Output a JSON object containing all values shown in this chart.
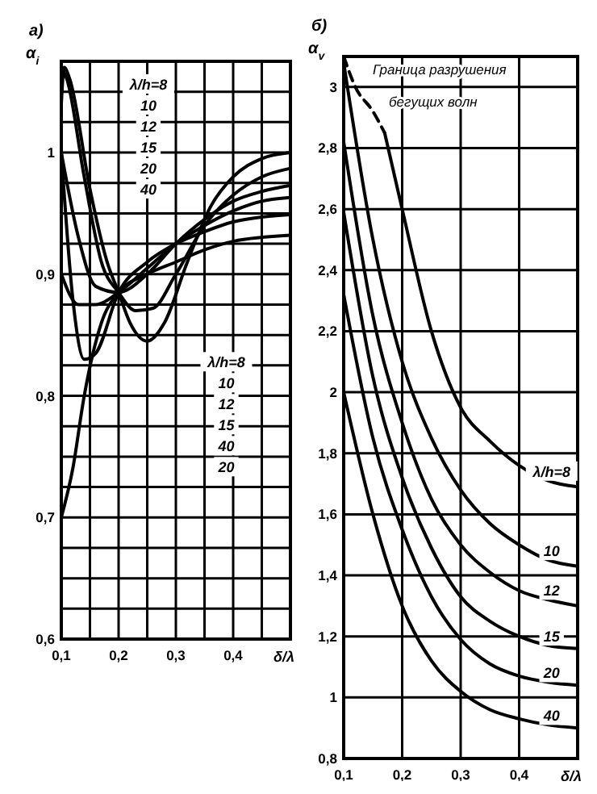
{
  "chart_data": [
    {
      "type": "line",
      "title": "а)",
      "ylabel": "α$_{i}$",
      "xlabel": "δ/λ",
      "xlim": [
        0.1,
        0.5
      ],
      "ylim": [
        0.6,
        1.075
      ],
      "xticks": [
        {
          "value": 0.1,
          "label": "0,1"
        },
        {
          "value": 0.15,
          "label": null
        },
        {
          "value": 0.2,
          "label": "0,2"
        },
        {
          "value": 0.25,
          "label": null
        },
        {
          "value": 0.3,
          "label": "0,3"
        },
        {
          "value": 0.35,
          "label": null
        },
        {
          "value": 0.4,
          "label": "0,4"
        },
        {
          "value": 0.45,
          "label": null
        },
        {
          "value": 0.5,
          "label": null
        }
      ],
      "yticks": [
        {
          "value": 0.6,
          "label": "0,6"
        },
        {
          "value": 0.625,
          "label": null
        },
        {
          "value": 0.65,
          "label": null
        },
        {
          "value": 0.675,
          "label": null
        },
        {
          "value": 0.7,
          "label": "0,7"
        },
        {
          "value": 0.725,
          "label": null
        },
        {
          "value": 0.75,
          "label": null
        },
        {
          "value": 0.775,
          "label": null
        },
        {
          "value": 0.8,
          "label": "0,8"
        },
        {
          "value": 0.825,
          "label": null
        },
        {
          "value": 0.85,
          "label": null
        },
        {
          "value": 0.875,
          "label": null
        },
        {
          "value": 0.9,
          "label": "0,9"
        },
        {
          "value": 0.925,
          "label": null
        },
        {
          "value": 0.95,
          "label": null
        },
        {
          "value": 0.975,
          "label": null
        },
        {
          "value": 1,
          "label": "1"
        },
        {
          "value": 1.025,
          "label": null
        },
        {
          "value": 1.05,
          "label": null
        }
      ],
      "grid": true,
      "marker": "none",
      "line_style": "solid",
      "series": [
        {
          "color": "#000000",
          "x": [
            0.1,
            0.105,
            0.115,
            0.15,
            0.18,
            0.2,
            0.22,
            0.25,
            0.28,
            0.32,
            0.36,
            0.4,
            0.45,
            0.5
          ],
          "values": [
            1.04,
            1.07,
            1.06,
            0.97,
            0.91,
            0.885,
            0.86,
            0.845,
            0.86,
            0.91,
            0.955,
            0.98,
            0.995,
            1.0
          ]
        },
        {
          "color": "#000000",
          "x": [
            0.1,
            0.11,
            0.14,
            0.17,
            0.2,
            0.23,
            0.26,
            0.3,
            0.35,
            0.4,
            0.45,
            0.5
          ],
          "values": [
            1.07,
            1.06,
            0.98,
            0.91,
            0.885,
            0.87,
            0.872,
            0.9,
            0.94,
            0.965,
            0.98,
            0.987
          ]
        },
        {
          "color": "#000000",
          "x": [
            0.1,
            0.13,
            0.16,
            0.2,
            0.25,
            0.3,
            0.35,
            0.4,
            0.45,
            0.5
          ],
          "values": [
            1.0,
            0.93,
            0.89,
            0.885,
            0.9,
            0.925,
            0.945,
            0.96,
            0.968,
            0.973
          ]
        },
        {
          "color": "#000000",
          "x": [
            0.1,
            0.13,
            0.16,
            0.2,
            0.25,
            0.3,
            0.35,
            0.4,
            0.45,
            0.5
          ],
          "values": [
            0.9,
            0.875,
            0.875,
            0.885,
            0.905,
            0.925,
            0.94,
            0.952,
            0.96,
            0.963
          ]
        },
        {
          "color": "#000000",
          "x": [
            0.1,
            0.12,
            0.14,
            0.16,
            0.2,
            0.25,
            0.3,
            0.35,
            0.4,
            0.45,
            0.5
          ],
          "values": [
            1.0,
            0.88,
            0.83,
            0.835,
            0.885,
            0.91,
            0.925,
            0.935,
            0.943,
            0.947,
            0.949
          ]
        },
        {
          "color": "#000000",
          "x": [
            0.1,
            0.12,
            0.14,
            0.17,
            0.2,
            0.25,
            0.3,
            0.35,
            0.4,
            0.5
          ],
          "values": [
            0.7,
            0.74,
            0.8,
            0.86,
            0.885,
            0.9,
            0.91,
            0.92,
            0.927,
            0.932
          ]
        }
      ],
      "annotations": [
        "λ/h=8",
        "10",
        "12",
        "15",
        "20",
        "40",
        "λ/h=8",
        "10",
        "12",
        "15",
        "40",
        "20"
      ]
    },
    {
      "type": "line",
      "title": "б)",
      "ylabel": "α$_{v}$",
      "xlabel": "δ/λ",
      "xlim": [
        0.1,
        0.5
      ],
      "ylim": [
        0.8,
        3.1
      ],
      "xticks": [
        {
          "value": 0.1,
          "label": "0,1"
        },
        {
          "value": 0.2,
          "label": "0,2"
        },
        {
          "value": 0.3,
          "label": "0,3"
        },
        {
          "value": 0.4,
          "label": "0,4"
        },
        {
          "value": 0.5,
          "label": null
        }
      ],
      "yticks": [
        {
          "value": 0.8,
          "label": "0,8"
        },
        {
          "value": 1,
          "label": "1"
        },
        {
          "value": 1.2,
          "label": "1,2"
        },
        {
          "value": 1.4,
          "label": "1,4"
        },
        {
          "value": 1.6,
          "label": "1,6"
        },
        {
          "value": 1.8,
          "label": "1,8"
        },
        {
          "value": 2,
          "label": "2"
        },
        {
          "value": 2.2,
          "label": "2,2"
        },
        {
          "value": 2.4,
          "label": "2,4"
        },
        {
          "value": 2.6,
          "label": "2,6"
        },
        {
          "value": 2.8,
          "label": "2,8"
        },
        {
          "value": 3,
          "label": "3"
        }
      ],
      "grid": true,
      "marker": "none",
      "line_style": "solid",
      "series": [
        {
          "name": "Граница разрушения бегущих волн",
          "color": "#000000",
          "line_style": "dashed",
          "x": [
            0.1,
            0.12,
            0.15,
            0.17
          ],
          "values": [
            3.1,
            3.0,
            2.92,
            2.85
          ]
        },
        {
          "name": "λ/h=8",
          "color": "#000000",
          "x": [
            0.17,
            0.2,
            0.25,
            0.3,
            0.35,
            0.4,
            0.45,
            0.5
          ],
          "values": [
            2.85,
            2.6,
            2.2,
            1.95,
            1.84,
            1.76,
            1.71,
            1.69
          ]
        },
        {
          "name": "10",
          "color": "#000000",
          "x": [
            0.1,
            0.15,
            0.2,
            0.25,
            0.3,
            0.35,
            0.4,
            0.45,
            0.5
          ],
          "values": [
            3.08,
            2.5,
            2.1,
            1.85,
            1.68,
            1.57,
            1.5,
            1.45,
            1.43
          ]
        },
        {
          "name": "12",
          "color": "#000000",
          "x": [
            0.1,
            0.15,
            0.2,
            0.25,
            0.3,
            0.35,
            0.4,
            0.45,
            0.5
          ],
          "values": [
            2.82,
            2.25,
            1.9,
            1.65,
            1.5,
            1.41,
            1.35,
            1.32,
            1.3
          ]
        },
        {
          "name": "15",
          "color": "#000000",
          "x": [
            0.1,
            0.15,
            0.2,
            0.25,
            0.3,
            0.35,
            0.4,
            0.45,
            0.5
          ],
          "values": [
            2.59,
            2.05,
            1.72,
            1.49,
            1.33,
            1.25,
            1.2,
            1.17,
            1.16
          ]
        },
        {
          "name": "20",
          "color": "#000000",
          "x": [
            0.1,
            0.15,
            0.2,
            0.25,
            0.3,
            0.35,
            0.4,
            0.45,
            0.5
          ],
          "values": [
            2.32,
            1.85,
            1.55,
            1.33,
            1.19,
            1.11,
            1.07,
            1.05,
            1.04
          ]
        },
        {
          "name": "40",
          "color": "#000000",
          "x": [
            0.1,
            0.15,
            0.2,
            0.25,
            0.3,
            0.35,
            0.4,
            0.45,
            0.5
          ],
          "values": [
            2.0,
            1.6,
            1.3,
            1.12,
            1.02,
            0.96,
            0.93,
            0.91,
            0.9
          ]
        }
      ]
    }
  ]
}
